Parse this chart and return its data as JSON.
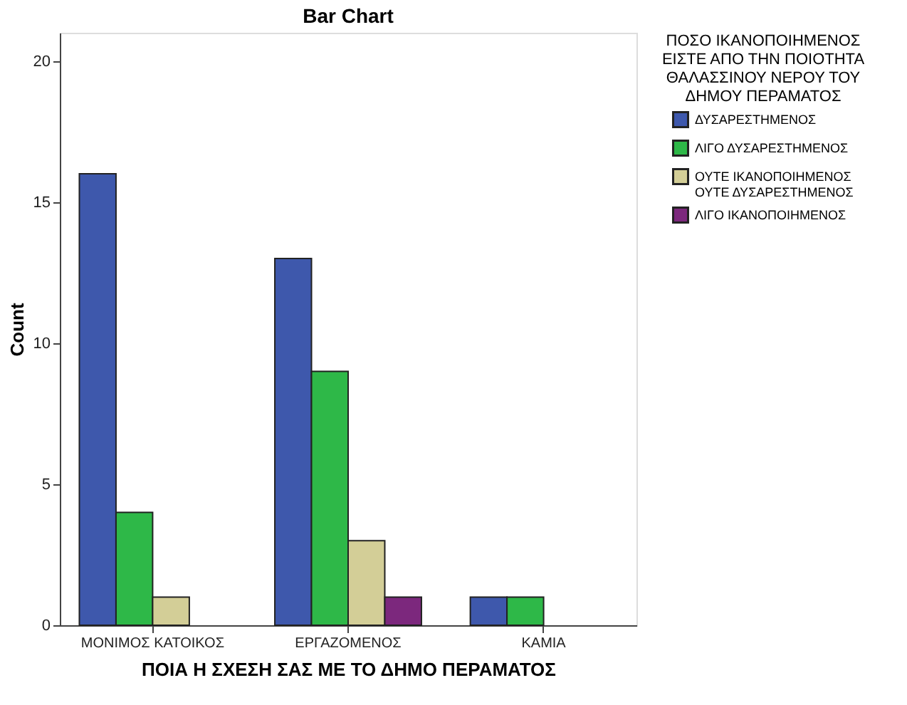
{
  "chart_data": {
    "type": "bar",
    "title": "Bar Chart",
    "xlabel": "ΠΟΙΑ Η ΣΧΕΣΗ ΣΑΣ ΜΕ ΤΟ ΔΗΜΟ ΠΕΡΑΜΑΤΟΣ",
    "ylabel": "Count",
    "legend_title": "ΠΟΣΟ ΙΚΑΝΟΠΟΙΗΜΕΝΟΣ ΕΙΣΤΕ ΑΠΟ ΤΗΝ ΠΟΙΟΤΗΤΑ ΘΑΛΑΣΣΙΝΟΥ ΝΕΡΟΥ ΤΟΥ ΔΗΜΟΥ ΠΕΡΑΜΑΤΟΣ",
    "categories": [
      "ΜΟΝΙΜΟΣ ΚΑΤΟΙΚΟΣ",
      "ΕΡΓΑΖΟΜΕΝΟΣ",
      "ΚΑΜΙΑ"
    ],
    "series": [
      {
        "name": "ΔΥΣΑΡΕΣΤΗΜΕΝΟΣ",
        "color": "#3e58ac",
        "values": [
          16,
          13,
          1
        ]
      },
      {
        "name": "ΛΙΓΟ ΔΥΣΑΡΕΣΤΗΜΕΝΟΣ",
        "color": "#2eb848",
        "values": [
          4,
          9,
          1
        ]
      },
      {
        "name": "ΟΥΤΕ ΙΚΑΝΟΠΟΙΗΜΕΝΟΣ ΟΥΤΕ ΔΥΣΑΡΕΣΤΗΜΕΝΟΣ",
        "color": "#d3ce97",
        "values": [
          1,
          3,
          null
        ]
      },
      {
        "name": "ΛΙΓΟ ΙΚΑΝΟΠΟΙΗΜΕΝΟΣ",
        "color": "#7c287d",
        "values": [
          null,
          1,
          null
        ]
      }
    ],
    "ylim": [
      0,
      21
    ],
    "yticks": [
      0,
      5,
      10,
      15,
      20
    ],
    "grid": false,
    "legend": "right"
  }
}
